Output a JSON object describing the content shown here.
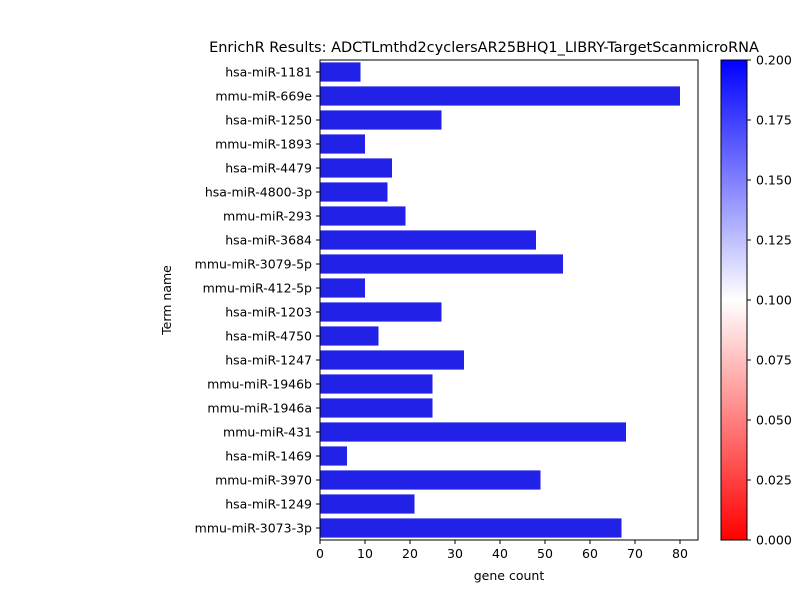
{
  "chart_data": {
    "type": "bar",
    "orientation": "horizontal",
    "title": "EnrichR Results: ADCTLmthd2cyclersAR25BHQ1_LIBRY-TargetScanmicroRNA",
    "xlabel": "gene count",
    "ylabel": "Term name",
    "xlim": [
      0,
      84
    ],
    "xticks": [
      0,
      10,
      20,
      30,
      40,
      50,
      60,
      70,
      80
    ],
    "grid": false,
    "bar_color": "#2121e8",
    "categories": [
      "hsa-miR-1181",
      "mmu-miR-669e",
      "hsa-miR-1250",
      "mmu-miR-1893",
      "hsa-miR-4479",
      "hsa-miR-4800-3p",
      "mmu-miR-293",
      "hsa-miR-3684",
      "mmu-miR-3079-5p",
      "mmu-miR-412-5p",
      "hsa-miR-1203",
      "hsa-miR-4750",
      "hsa-miR-1247",
      "mmu-miR-1946b",
      "mmu-miR-1946a",
      "mmu-miR-431",
      "hsa-miR-1469",
      "mmu-miR-3970",
      "hsa-miR-1249",
      "mmu-miR-3073-3p"
    ],
    "values": [
      9,
      80,
      27,
      10,
      16,
      15,
      19,
      48,
      54,
      10,
      27,
      13,
      32,
      25,
      25,
      68,
      6,
      49,
      21,
      67
    ],
    "colorbar": {
      "range": [
        0,
        0.2
      ],
      "ticks": [
        "0.000",
        "0.025",
        "0.050",
        "0.075",
        "0.100",
        "0.125",
        "0.150",
        "0.175",
        "0.200"
      ],
      "colors": [
        "#ff0000",
        "#ffffff",
        "#0000ff"
      ]
    }
  }
}
